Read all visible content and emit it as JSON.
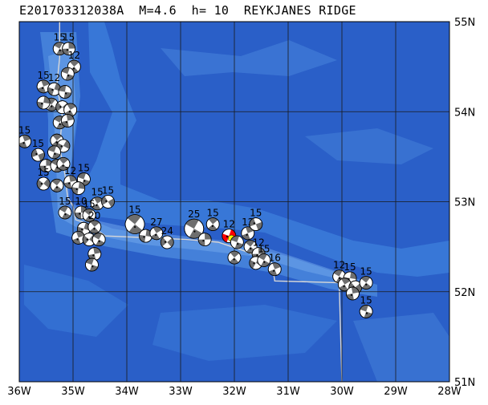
{
  "title": "E201703312038A  M=4.6  h= 10  REYKJANES RIDGE",
  "colors": {
    "deep": "#2a5fc8",
    "mid": "#3a7ad8",
    "shallow": "#5a9ae8",
    "ridge": "#7ab0f0",
    "grid": "#1a1a1a",
    "boundary": "#d8d8d8",
    "beachball_dark": "#6e6e6e",
    "highlight_red": "#ff0000",
    "highlight_yellow": "#ffff00"
  },
  "axes": {
    "lon_range": [
      -36,
      -28
    ],
    "lat_range": [
      51,
      55
    ],
    "lon_ticks": [
      "36W",
      "35W",
      "34W",
      "33W",
      "32W",
      "31W",
      "30W",
      "29W",
      "28W"
    ],
    "lat_ticks": [
      "55N",
      "54N",
      "53N",
      "52N",
      "51N"
    ]
  },
  "events": [
    {
      "lon": -35.25,
      "lat": 54.7,
      "label": "15",
      "rot": 20
    },
    {
      "lon": -35.08,
      "lat": 54.7,
      "label": "15",
      "rot": 80
    },
    {
      "lon": -34.98,
      "lat": 54.5,
      "label": "12",
      "rot": 40
    },
    {
      "lon": -35.1,
      "lat": 54.42,
      "label": "",
      "rot": 10
    },
    {
      "lon": -35.55,
      "lat": 54.28,
      "label": "15",
      "rot": 60
    },
    {
      "lon": -35.35,
      "lat": 54.25,
      "label": "12",
      "rot": 100
    },
    {
      "lon": -35.15,
      "lat": 54.22,
      "label": "",
      "rot": 0
    },
    {
      "lon": -35.4,
      "lat": 54.08,
      "label": "",
      "rot": 30
    },
    {
      "lon": -35.2,
      "lat": 54.05,
      "label": "",
      "rot": 130
    },
    {
      "lon": -35.05,
      "lat": 54.02,
      "label": "",
      "rot": 50
    },
    {
      "lon": -35.55,
      "lat": 54.1,
      "label": "",
      "rot": 90
    },
    {
      "lon": -35.25,
      "lat": 53.88,
      "label": "",
      "rot": 20
    },
    {
      "lon": -35.1,
      "lat": 53.9,
      "label": "",
      "rot": 70
    },
    {
      "lon": -35.3,
      "lat": 53.68,
      "label": "",
      "rot": 40
    },
    {
      "lon": -35.18,
      "lat": 53.62,
      "label": "",
      "rot": 110
    },
    {
      "lon": -35.35,
      "lat": 53.55,
      "label": "",
      "rot": 10
    },
    {
      "lon": -35.9,
      "lat": 53.67,
      "label": "15",
      "rot": 60
    },
    {
      "lon": -35.65,
      "lat": 53.52,
      "label": "15",
      "rot": 150
    },
    {
      "lon": -35.5,
      "lat": 53.4,
      "label": "",
      "rot": 80
    },
    {
      "lon": -35.3,
      "lat": 53.4,
      "label": "",
      "rot": 20
    },
    {
      "lon": -35.18,
      "lat": 53.42,
      "label": "",
      "rot": 40
    },
    {
      "lon": -35.55,
      "lat": 53.2,
      "label": "15",
      "rot": 120
    },
    {
      "lon": -35.3,
      "lat": 53.18,
      "label": "",
      "rot": 30
    },
    {
      "lon": -35.05,
      "lat": 53.22,
      "label": "12",
      "rot": 70
    },
    {
      "lon": -34.8,
      "lat": 53.25,
      "label": "15",
      "rot": 10
    },
    {
      "lon": -34.9,
      "lat": 53.15,
      "label": "",
      "rot": 90
    },
    {
      "lon": -34.55,
      "lat": 52.98,
      "label": "15",
      "rot": 50
    },
    {
      "lon": -34.35,
      "lat": 53.0,
      "label": "15",
      "rot": 140
    },
    {
      "lon": -35.15,
      "lat": 52.88,
      "label": "15",
      "rot": 20
    },
    {
      "lon": -34.85,
      "lat": 52.88,
      "label": "10",
      "rot": 80
    },
    {
      "lon": -34.7,
      "lat": 52.85,
      "label": "15",
      "rot": 30
    },
    {
      "lon": -34.8,
      "lat": 52.7,
      "label": "",
      "rot": 100
    },
    {
      "lon": -34.6,
      "lat": 52.72,
      "label": "20",
      "rot": 40
    },
    {
      "lon": -34.9,
      "lat": 52.6,
      "label": "",
      "rot": 60
    },
    {
      "lon": -34.7,
      "lat": 52.58,
      "label": "",
      "rot": 120
    },
    {
      "lon": -34.52,
      "lat": 52.58,
      "label": "",
      "rot": 20
    },
    {
      "lon": -34.6,
      "lat": 52.42,
      "label": "",
      "rot": 70
    },
    {
      "lon": -34.65,
      "lat": 52.3,
      "label": "",
      "rot": 10
    },
    {
      "lon": -33.85,
      "lat": 52.75,
      "label": "15",
      "rot": 30,
      "big": true
    },
    {
      "lon": -33.65,
      "lat": 52.62,
      "label": "",
      "rot": 90
    },
    {
      "lon": -33.45,
      "lat": 52.65,
      "label": "27",
      "rot": 50
    },
    {
      "lon": -33.25,
      "lat": 52.55,
      "label": "24",
      "rot": 130
    },
    {
      "lon": -32.75,
      "lat": 52.7,
      "label": "25",
      "rot": 20,
      "big": true
    },
    {
      "lon": -32.55,
      "lat": 52.58,
      "label": "",
      "rot": 80
    },
    {
      "lon": -32.4,
      "lat": 52.75,
      "label": "15",
      "rot": 40
    },
    {
      "lon": -32.1,
      "lat": 52.62,
      "label": "12",
      "rot": 100,
      "main": true
    },
    {
      "lon": -31.95,
      "lat": 52.55,
      "label": "",
      "rot": 10
    },
    {
      "lon": -31.75,
      "lat": 52.65,
      "label": "12",
      "rot": 60
    },
    {
      "lon": -31.6,
      "lat": 52.75,
      "label": "15",
      "rot": 150
    },
    {
      "lon": -31.7,
      "lat": 52.5,
      "label": "",
      "rot": 30
    },
    {
      "lon": -31.55,
      "lat": 52.42,
      "label": "12",
      "rot": 80
    },
    {
      "lon": -31.6,
      "lat": 52.32,
      "label": "",
      "rot": 110
    },
    {
      "lon": -31.45,
      "lat": 52.35,
      "label": "15",
      "rot": 20
    },
    {
      "lon": -32.0,
      "lat": 52.38,
      "label": "",
      "rot": 40
    },
    {
      "lon": -31.25,
      "lat": 52.25,
      "label": "16",
      "rot": 60
    },
    {
      "lon": -30.05,
      "lat": 52.17,
      "label": "12",
      "rot": 20
    },
    {
      "lon": -29.85,
      "lat": 52.15,
      "label": "15",
      "rot": 90
    },
    {
      "lon": -29.95,
      "lat": 52.08,
      "label": "",
      "rot": 50
    },
    {
      "lon": -29.75,
      "lat": 52.05,
      "label": "",
      "rot": 130
    },
    {
      "lon": -29.55,
      "lat": 52.1,
      "label": "15",
      "rot": 30
    },
    {
      "lon": -29.8,
      "lat": 51.98,
      "label": "",
      "rot": 70
    },
    {
      "lon": -29.55,
      "lat": 51.78,
      "label": "15",
      "rot": 10
    }
  ]
}
